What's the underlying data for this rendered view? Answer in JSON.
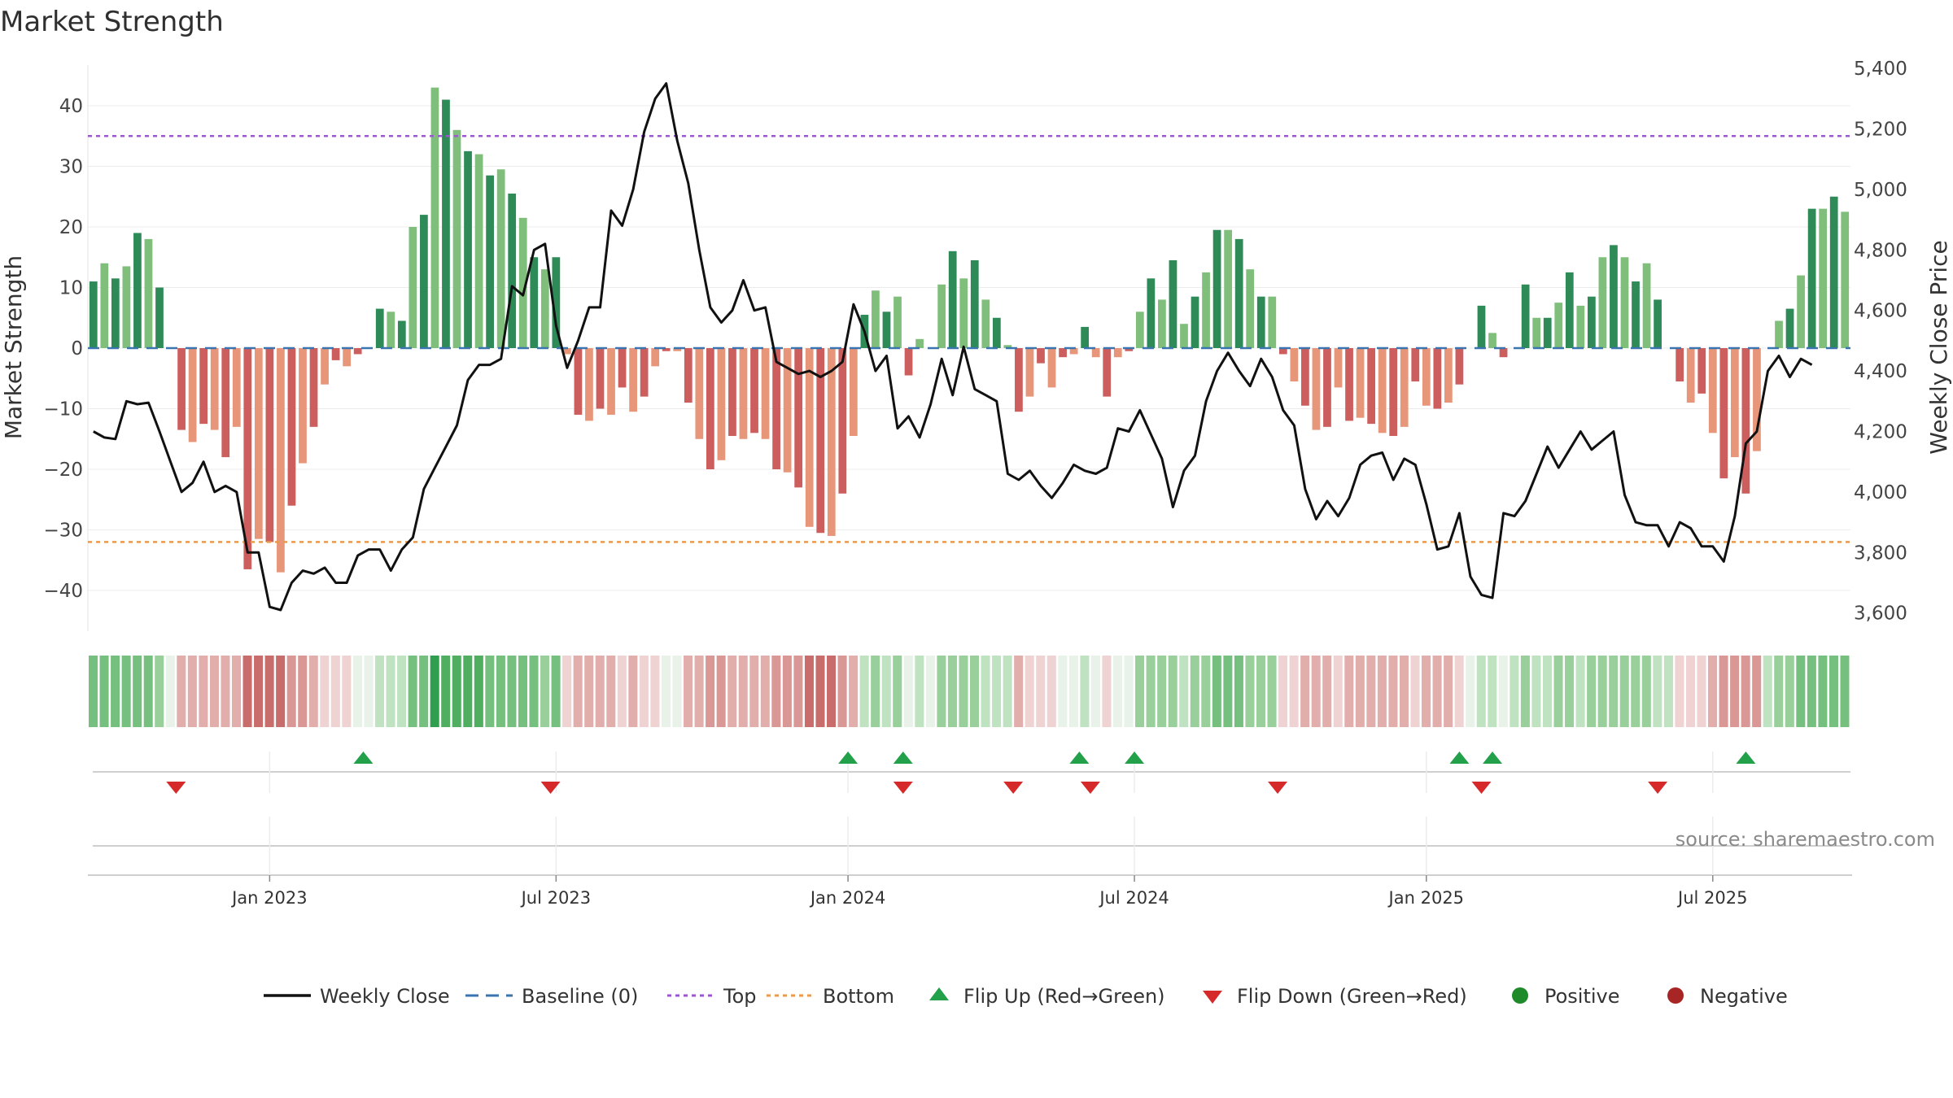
{
  "chart_data": {
    "type": "bar",
    "title": "Market Strength",
    "ylabel": "Market Strength",
    "y2label": "Weekly Close Price",
    "ylim": [
      -46,
      48
    ],
    "y2lim": [
      3540,
      5470
    ],
    "yticks": [
      40,
      30,
      20,
      10,
      0,
      -10,
      -20,
      -30,
      -40
    ],
    "y2ticks": [
      5400,
      5200,
      5000,
      4800,
      4600,
      4400,
      4200,
      4000,
      3800,
      3600
    ],
    "y2tick_labels": [
      "5,400",
      "5,200",
      "5,000",
      "4,800",
      "4,600",
      "4,400",
      "4,200",
      "4,000",
      "3,800",
      "3,600"
    ],
    "top_level": 35,
    "bottom_level": -32,
    "x_ticks": [
      {
        "label": "Jan 2023",
        "week": 16
      },
      {
        "label": "Jul 2023",
        "week": 42
      },
      {
        "label": "Jan 2024",
        "week": 68.5
      },
      {
        "label": "Jul 2024",
        "week": 94.5
      },
      {
        "label": "Jan 2025",
        "week": 121
      },
      {
        "label": "Jul 2025",
        "week": 147
      }
    ],
    "strength": [
      11,
      14,
      11.5,
      13.5,
      19,
      18,
      10,
      0,
      -13.5,
      -15.5,
      -12.5,
      -13.5,
      -18,
      -13,
      -36.5,
      -31.5,
      -32,
      -37,
      -26,
      -19,
      -13,
      -6,
      -2,
      -3,
      -1,
      0,
      6.5,
      6,
      4.5,
      20,
      22,
      43,
      41,
      36,
      32.5,
      32,
      28.5,
      29.5,
      25.5,
      21.5,
      15,
      13,
      15,
      -1,
      -11,
      -12,
      -10,
      -11,
      -6.5,
      -10.5,
      -8,
      -3,
      -0.5,
      -0.5,
      -9,
      -15,
      -20,
      -18.5,
      -14.5,
      -15,
      -14,
      -15,
      -20,
      -20.5,
      -23,
      -29.5,
      -30.5,
      -31,
      -24,
      -14.5,
      5.5,
      9.5,
      6,
      8.5,
      -4.5,
      1.5,
      0,
      10.5,
      16,
      11.5,
      14.5,
      8,
      5,
      0.5,
      -10.5,
      -8,
      -2.5,
      -6.5,
      -1.5,
      -1,
      3.5,
      -1.5,
      -8,
      -1.5,
      -0.5,
      6,
      11.5,
      8,
      14.5,
      4,
      8.5,
      12.5,
      19.5,
      19.5,
      18,
      13,
      8.5,
      8.5,
      -1,
      -5.5,
      -9.5,
      -13.5,
      -13,
      -6.5,
      -12,
      -11.5,
      -12.5,
      -14,
      -14.5,
      -13,
      -5.5,
      -9.5,
      -10,
      -9,
      -6,
      0,
      7,
      2.5,
      -1.5,
      0,
      10.5,
      5,
      5,
      7.5,
      12.5,
      7,
      8.5,
      15,
      17,
      15,
      11,
      14,
      8,
      0,
      -5.5,
      -9,
      -7.5,
      -14,
      -21.5,
      -18,
      -24,
      -17,
      0,
      4.5,
      6.5,
      12,
      23,
      23,
      25,
      22.5
    ],
    "weekly_close": [
      4200,
      4180,
      4175,
      4300,
      4290,
      4295,
      4200,
      4100,
      4000,
      4030,
      4100,
      4000,
      4020,
      4000,
      3800,
      3800,
      3620,
      3610,
      3700,
      3740,
      3730,
      3750,
      3700,
      3700,
      3790,
      3810,
      3810,
      3740,
      3810,
      3850,
      4010,
      4080,
      4150,
      4220,
      4370,
      4420,
      4420,
      4440,
      4680,
      4650,
      4800,
      4820,
      4550,
      4410,
      4500,
      4610,
      4610,
      4930,
      4880,
      5000,
      5190,
      5300,
      5350,
      5160,
      5020,
      4800,
      4610,
      4560,
      4600,
      4700,
      4600,
      4610,
      4430,
      4410,
      4390,
      4400,
      4380,
      4400,
      4430,
      4620,
      4530,
      4400,
      4450,
      4210,
      4250,
      4180,
      4290,
      4440,
      4320,
      4480,
      4340,
      4320,
      4300,
      4060,
      4040,
      4070,
      4020,
      3980,
      4030,
      4090,
      4070,
      4060,
      4080,
      4210,
      4200,
      4270,
      4190,
      4110,
      3950,
      4070,
      4120,
      4300,
      4400,
      4460,
      4400,
      4350,
      4440,
      4380,
      4270,
      4220,
      4010,
      3910,
      3970,
      3920,
      3980,
      4090,
      4120,
      4130,
      4040,
      4110,
      4090,
      3960,
      3810,
      3820,
      3930,
      3720,
      3660,
      3650,
      3930,
      3920,
      3970,
      4060,
      4150,
      4080,
      4140,
      4200,
      4140,
      4170,
      4200,
      3990,
      3900,
      3890,
      3890,
      3820,
      3900,
      3880,
      3820,
      3820,
      3770,
      3920,
      4160,
      4200,
      4400,
      4450,
      4380,
      4440,
      4420
    ],
    "strength_band": [
      3,
      3,
      3,
      3,
      3,
      3,
      2,
      0,
      -2,
      -2,
      -2,
      -2,
      -2,
      -2,
      -4,
      -4,
      -4,
      -4,
      -3,
      -3,
      -2,
      -1,
      -1,
      -1,
      0,
      0,
      1,
      1,
      1,
      3,
      3,
      5,
      4,
      4,
      4,
      4,
      3,
      3,
      3,
      3,
      3,
      2,
      3,
      -1,
      -2,
      -2,
      -2,
      -2,
      -1,
      -2,
      -1,
      -1,
      0,
      0,
      -2,
      -2,
      -3,
      -3,
      -2,
      -2,
      -2,
      -2,
      -3,
      -3,
      -3,
      -4,
      -4,
      -4,
      -3,
      -2,
      1,
      2,
      1,
      2,
      0,
      1,
      0,
      2,
      2,
      2,
      2,
      1,
      1,
      1,
      -2,
      -1,
      -1,
      -1,
      0,
      0,
      1,
      0,
      -1,
      0,
      0,
      2,
      2,
      2,
      2,
      1,
      2,
      2,
      3,
      3,
      3,
      2,
      2,
      2,
      -1,
      -1,
      -2,
      -2,
      -2,
      -1,
      -2,
      -2,
      -2,
      -2,
      -2,
      -2,
      -1,
      -2,
      -2,
      -2,
      -1,
      0,
      1,
      1,
      0,
      1,
      2,
      1,
      1,
      2,
      2,
      1,
      2,
      2,
      2,
      2,
      2,
      2,
      1,
      1,
      -1,
      -1,
      -1,
      -2,
      -3,
      -3,
      -3,
      -3,
      1,
      2,
      2,
      3,
      3,
      3,
      3,
      3
    ],
    "flip_up_weeks": [
      24.5,
      68.5,
      73.5,
      89.5,
      94.5,
      124,
      127,
      150
    ],
    "flip_down_weeks": [
      7.5,
      41.5,
      73.5,
      83.5,
      90.5,
      107.5,
      126,
      142
    ],
    "source": "source: sharemaestro.com",
    "legend": [
      {
        "name": "Weekly Close",
        "kind": "line",
        "color": "#111111"
      },
      {
        "name": "Baseline (0)",
        "kind": "dash",
        "color": "#3a75b0"
      },
      {
        "name": "Top",
        "kind": "dot",
        "color": "#9b59d0"
      },
      {
        "name": "Bottom",
        "kind": "dot",
        "color": "#e89a4e"
      },
      {
        "name": "Flip Up (Red→Green)",
        "kind": "up",
        "color": "#22a04a"
      },
      {
        "name": "Flip Down (Green→Red)",
        "kind": "down",
        "color": "#d62a2a"
      },
      {
        "name": "Positive",
        "kind": "circle",
        "color": "#1f8a2a"
      },
      {
        "name": "Negative",
        "kind": "circle",
        "color": "#a82525"
      }
    ]
  }
}
